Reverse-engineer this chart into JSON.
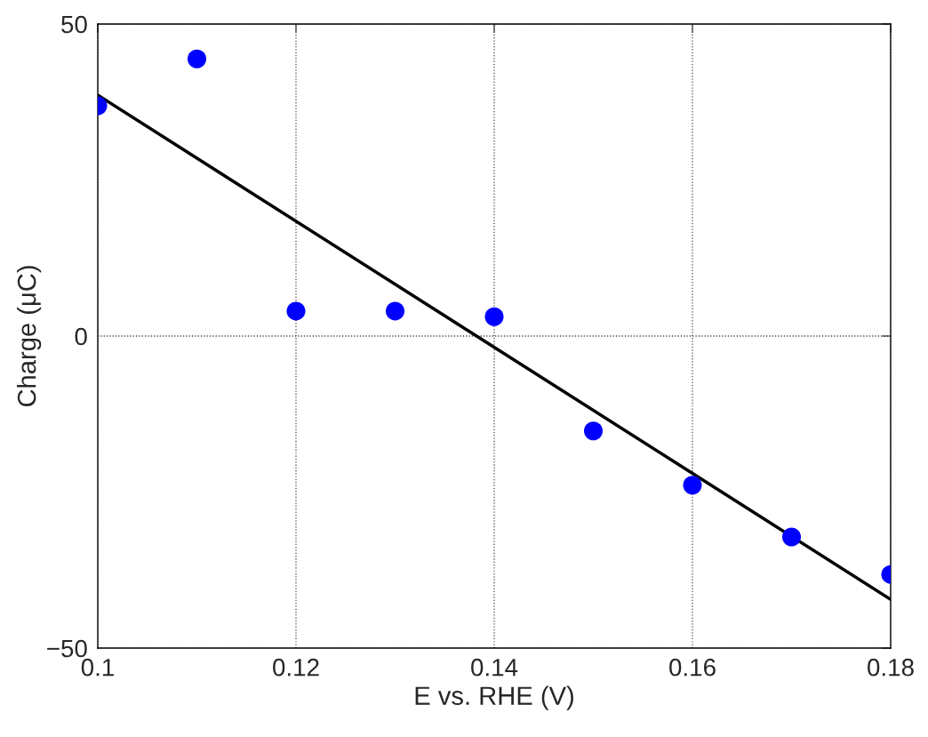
{
  "chart_data": {
    "type": "scatter",
    "xlabel": "E vs. RHE (V)",
    "ylabel": "Charge (μC)",
    "x": [
      0.1,
      0.11,
      0.12,
      0.13,
      0.14,
      0.15,
      0.16,
      0.17,
      0.18
    ],
    "series": [
      {
        "color": "#0000ff",
        "marker": "circle",
        "values": [
          36.9,
          44.4,
          4.0,
          4.0,
          3.1,
          -15.2,
          -23.9,
          -32.2,
          -38.2
        ]
      },
      {
        "type": "line",
        "color": "#000000",
        "marker": "none",
        "line_style": "solid",
        "x": [
          0.1,
          0.18
        ],
        "values": [
          38.6,
          -42.2
        ]
      }
    ],
    "xlim": [
      0.1,
      0.18
    ],
    "xticks": [
      0.1,
      0.12,
      0.14,
      0.16,
      0.18
    ],
    "ylim": [
      -50,
      50
    ],
    "yticks": [
      {
        "value": -50,
        "label": "−50"
      },
      0,
      50
    ],
    "grid": true
  }
}
